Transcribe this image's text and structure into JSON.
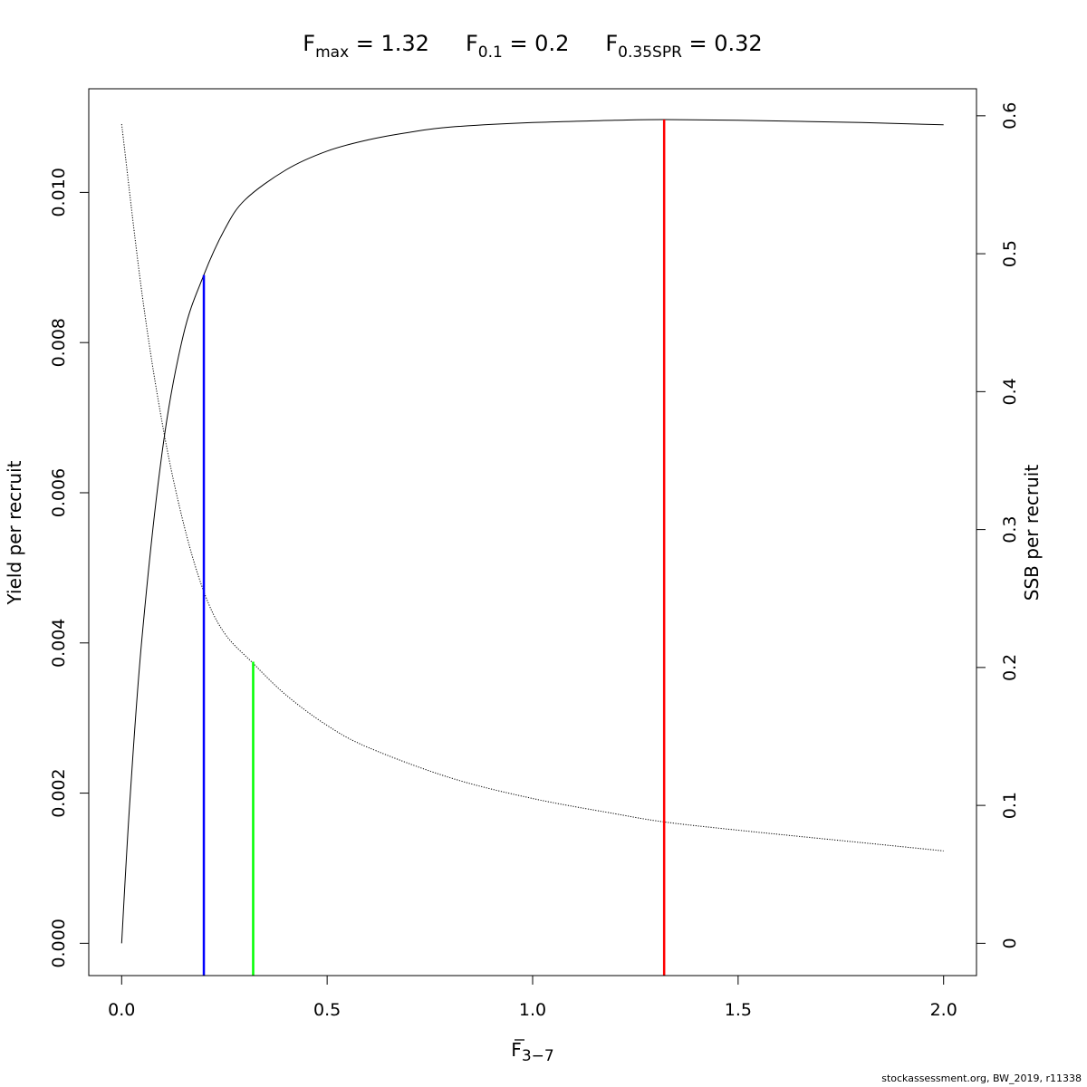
{
  "chart_data": {
    "type": "line",
    "title_parts": [
      {
        "base": "F",
        "sub": "max",
        "value": " = 1.32"
      },
      {
        "base": "F",
        "sub": "0.1",
        "value": " = 0.2"
      },
      {
        "base": "F",
        "sub": "0.35SPR",
        "value": " = 0.32"
      }
    ],
    "xlabel": {
      "base": "F",
      "sub": "3−7"
    },
    "ylabel_left": "Yield per recruit",
    "ylabel_right": "SSB per recruit",
    "xlim": [
      -0.08,
      2.08
    ],
    "ylim_left": [
      -0.00043,
      0.01138
    ],
    "ylim_right": [
      -0.0234,
      0.6196
    ],
    "x_ticks": [
      {
        "v": 0,
        "label": "0.0"
      },
      {
        "v": 0.5,
        "label": "0.5"
      },
      {
        "v": 1.0,
        "label": "1.0"
      },
      {
        "v": 1.5,
        "label": "1.5"
      },
      {
        "v": 2.0,
        "label": "2.0"
      }
    ],
    "y_left_ticks": [
      {
        "v": 0,
        "label": "0.000"
      },
      {
        "v": 0.002,
        "label": "0.002"
      },
      {
        "v": 0.004,
        "label": "0.004"
      },
      {
        "v": 0.006,
        "label": "0.006"
      },
      {
        "v": 0.008,
        "label": "0.008"
      },
      {
        "v": 0.01,
        "label": "0.010"
      }
    ],
    "y_right_ticks": [
      {
        "v": 0,
        "label": "0"
      },
      {
        "v": 0.1,
        "label": "0.1"
      },
      {
        "v": 0.2,
        "label": "0.2"
      },
      {
        "v": 0.3,
        "label": "0.3"
      },
      {
        "v": 0.4,
        "label": "0.4"
      },
      {
        "v": 0.5,
        "label": "0.5"
      },
      {
        "v": 0.6,
        "label": "0.6"
      }
    ],
    "series": [
      {
        "style": "solid",
        "axis": "left",
        "color": "#000000",
        "x": [
          0,
          0.02,
          0.05,
          0.1,
          0.15,
          0.2,
          0.25,
          0.3,
          0.4,
          0.5,
          0.6,
          0.7,
          0.8,
          1.0,
          1.2,
          1.32,
          1.5,
          1.8,
          2.0
        ],
        "y": [
          0,
          0.0019,
          0.0041,
          0.0066,
          0.0081,
          0.0089,
          0.0095,
          0.0099,
          0.0103,
          0.01055,
          0.0107,
          0.0108,
          0.01087,
          0.01093,
          0.01096,
          0.01097,
          0.01096,
          0.01093,
          0.0109
        ]
      },
      {
        "style": "dotted",
        "axis": "right",
        "color": "#000000",
        "x": [
          0,
          0.05,
          0.1,
          0.15,
          0.2,
          0.25,
          0.32,
          0.4,
          0.5,
          0.6,
          0.8,
          1.0,
          1.2,
          1.32,
          1.5,
          1.8,
          2.0
        ],
        "y": [
          0.594,
          0.47,
          0.375,
          0.305,
          0.255,
          0.225,
          0.203,
          0.18,
          0.158,
          0.142,
          0.12,
          0.105,
          0.094,
          0.088,
          0.082,
          0.073,
          0.067
        ]
      }
    ],
    "reference_lines": [
      {
        "name": "Fmax",
        "x": 1.32,
        "top": 0.01097,
        "color": "#ff0000"
      },
      {
        "name": "F0.1",
        "x": 0.2,
        "top": 0.0089,
        "color": "#0000ff"
      },
      {
        "name": "F0.35SPR",
        "x": 0.32,
        "top": 0.00375,
        "color": "#00ff00"
      }
    ],
    "grid": false,
    "legend": "none"
  },
  "footer": "stockassessment.org, BW_2019, r11338"
}
